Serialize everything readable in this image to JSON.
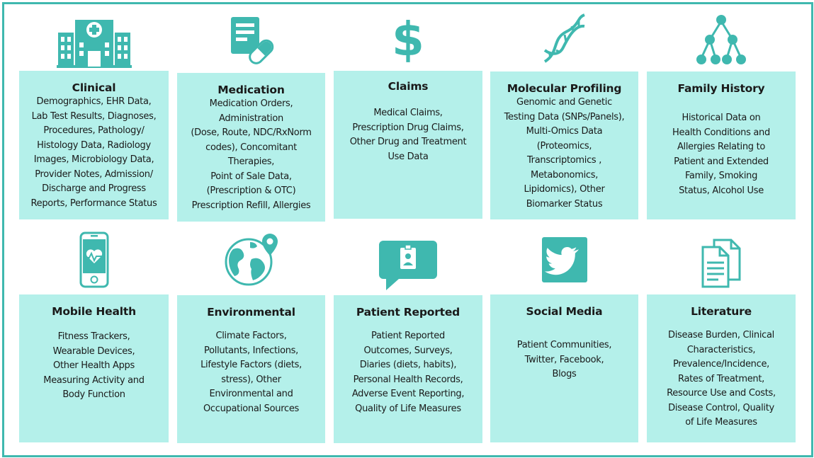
{
  "colors": {
    "teal": "#3fb8af",
    "card": "#b4f0ea",
    "border": "#3fb8af"
  },
  "cards": [
    {
      "icon": "hospital-icon",
      "title": "Clinical",
      "body": "Demographics, EHR Data,\nLab Test Results, Diagnoses,\nProcedures, Pathology/\nHistology Data, Radiology\nImages, Microbiology Data,\nProvider Notes, Admission/\nDischarge and Progress\nReports, Performance Status"
    },
    {
      "icon": "prescription-pill-icon",
      "title": "Medication",
      "body": "Medication Orders,\nAdministration\n(Dose, Route, NDC/RxNorm\ncodes), Concomitant\nTherapies,\nPoint of Sale Data,\n(Prescription & OTC)\nPrescription Refill, Allergies"
    },
    {
      "icon": "dollar-icon",
      "title": "Claims",
      "body": "Medical Claims,\nPrescription Drug Claims,\nOther Drug and Treatment\nUse Data"
    },
    {
      "icon": "dna-icon",
      "title": "Molecular Profiling",
      "body": "Genomic and Genetic\nTesting Data (SNPs/Panels),\nMulti-Omics Data\n(Proteomics,\nTranscriptomics ,\nMetabonomics,\nLipidomics), Other\nBiomarker Status"
    },
    {
      "icon": "family-tree-icon",
      "title": "Family History",
      "body": "Historical Data on\nHealth Conditions and\nAllergies Relating to\nPatient and Extended\nFamily, Smoking\nStatus, Alcohol Use"
    },
    {
      "icon": "smartphone-heart-icon",
      "title": "Mobile Health",
      "body": "Fitness Trackers,\nWearable Devices,\nOther Health Apps\nMeasuring Activity and\nBody Function"
    },
    {
      "icon": "globe-pin-icon",
      "title": "Environmental",
      "body": "Climate Factors,\nPollutants, Infections,\nLifestyle Factors (diets,\nstress), Other\nEnvironmental and\nOccupational Sources"
    },
    {
      "icon": "speech-badge-icon",
      "title": "Patient Reported",
      "body": "Patient Reported\nOutcomes, Surveys,\nDiaries (diets, habits),\nPersonal Health Records,\nAdverse Event Reporting,\nQuality of Life Measures"
    },
    {
      "icon": "twitter-icon",
      "title": "Social Media",
      "body": "Patient Communities,\nTwitter, Facebook,\nBlogs"
    },
    {
      "icon": "documents-icon",
      "title": "Literature",
      "body": "Disease Burden, Clinical\nCharacteristics,\nPrevalence/Incidence,\nRates of Treatment,\nResource Use and  Costs,\nDisease Control,  Quality\nof Life Measures"
    }
  ]
}
